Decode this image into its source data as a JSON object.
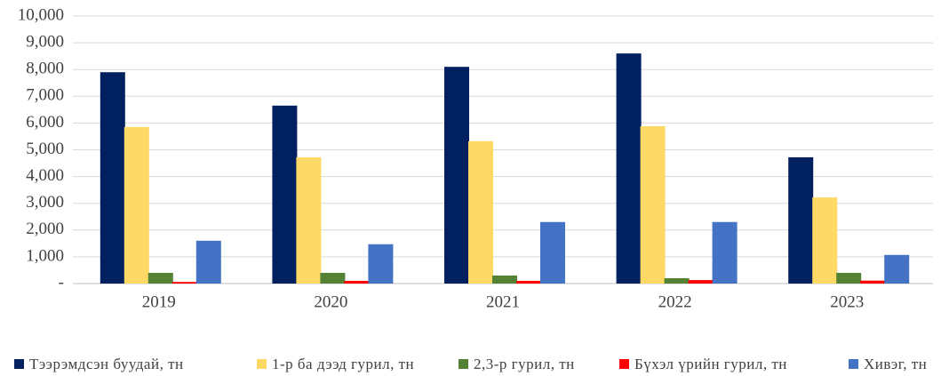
{
  "chart_data": {
    "type": "bar",
    "categories": [
      "2019",
      "2020",
      "2021",
      "2022",
      "2023"
    ],
    "series": [
      {
        "name": "Тээрэмдсэн буудай, тн",
        "color": "#002060",
        "values": [
          7900,
          6650,
          8100,
          8600,
          4720
        ]
      },
      {
        "name": "1-р ба дээд гурил, тн",
        "color": "#ffd966",
        "values": [
          5850,
          4720,
          5320,
          5880,
          3220
        ]
      },
      {
        "name": "2,3-р гурил, тн",
        "color": "#548235",
        "values": [
          400,
          400,
          300,
          200,
          400
        ]
      },
      {
        "name": "Бүхэл үрийн гурил, тн",
        "color": "#ff0000",
        "values": [
          60,
          100,
          100,
          130,
          110
        ]
      },
      {
        "name": "Хивэг, тн",
        "color": "#4472c4",
        "values": [
          1600,
          1470,
          2300,
          2300,
          1070
        ]
      }
    ],
    "ylim": [
      0,
      10000
    ],
    "yticks": [
      {
        "value": 0,
        "label": "-"
      },
      {
        "value": 1000,
        "label": "1,000"
      },
      {
        "value": 2000,
        "label": "2,000"
      },
      {
        "value": 3000,
        "label": "3,000"
      },
      {
        "value": 4000,
        "label": "4,000"
      },
      {
        "value": 5000,
        "label": "5,000"
      },
      {
        "value": 6000,
        "label": "6,000"
      },
      {
        "value": 7000,
        "label": "7,000"
      },
      {
        "value": 8000,
        "label": "8,000"
      },
      {
        "value": 9000,
        "label": "9,000"
      },
      {
        "value": 10000,
        "label": "10,000"
      }
    ],
    "grid": true,
    "legend": "bottom"
  }
}
